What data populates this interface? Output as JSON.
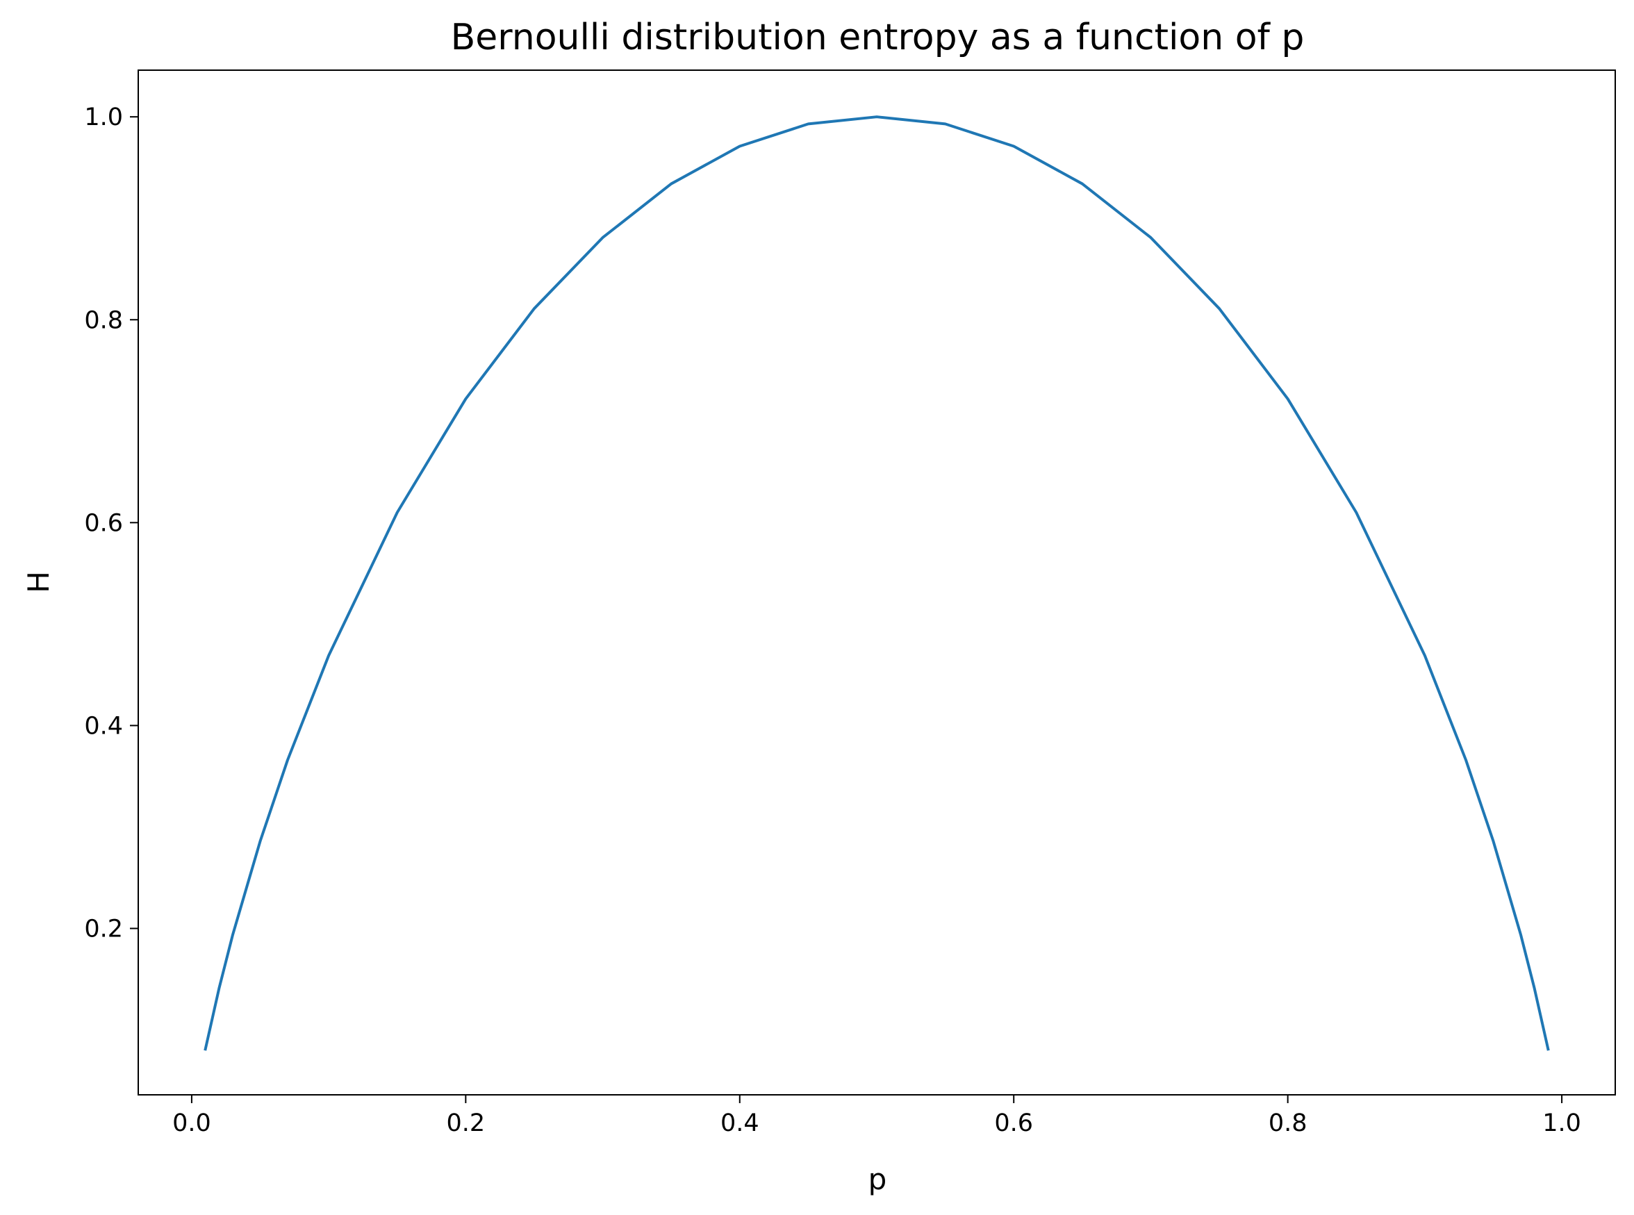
{
  "chart_data": {
    "type": "line",
    "title": "Bernoulli distribution entropy as  a function of p",
    "xlabel": "p",
    "ylabel": "H",
    "xlim": [
      -0.039,
      1.039
    ],
    "ylim": [
      0.036,
      1.046
    ],
    "x_ticks": [
      "0.0",
      "0.2",
      "0.4",
      "0.6",
      "0.8",
      "1.0"
    ],
    "y_ticks": [
      "0.2",
      "0.4",
      "0.6",
      "0.8",
      "1.0"
    ],
    "x_tick_values": [
      0.0,
      0.2,
      0.4,
      0.6,
      0.8,
      1.0
    ],
    "y_tick_values": [
      0.2,
      0.4,
      0.6,
      0.8,
      1.0
    ],
    "grid": false,
    "series": [
      {
        "color": "#1f77b4",
        "x": [
          0.01,
          0.02,
          0.03,
          0.05,
          0.07,
          0.1,
          0.15,
          0.2,
          0.25,
          0.3,
          0.35,
          0.4,
          0.45,
          0.5,
          0.55,
          0.6,
          0.65,
          0.7,
          0.75,
          0.8,
          0.85,
          0.9,
          0.93,
          0.95,
          0.97,
          0.98,
          0.99
        ],
        "y": [
          0.081,
          0.141,
          0.194,
          0.286,
          0.366,
          0.469,
          0.61,
          0.722,
          0.811,
          0.881,
          0.934,
          0.971,
          0.993,
          1.0,
          0.993,
          0.971,
          0.934,
          0.881,
          0.811,
          0.722,
          0.61,
          0.469,
          0.366,
          0.286,
          0.194,
          0.141,
          0.081
        ]
      }
    ]
  }
}
